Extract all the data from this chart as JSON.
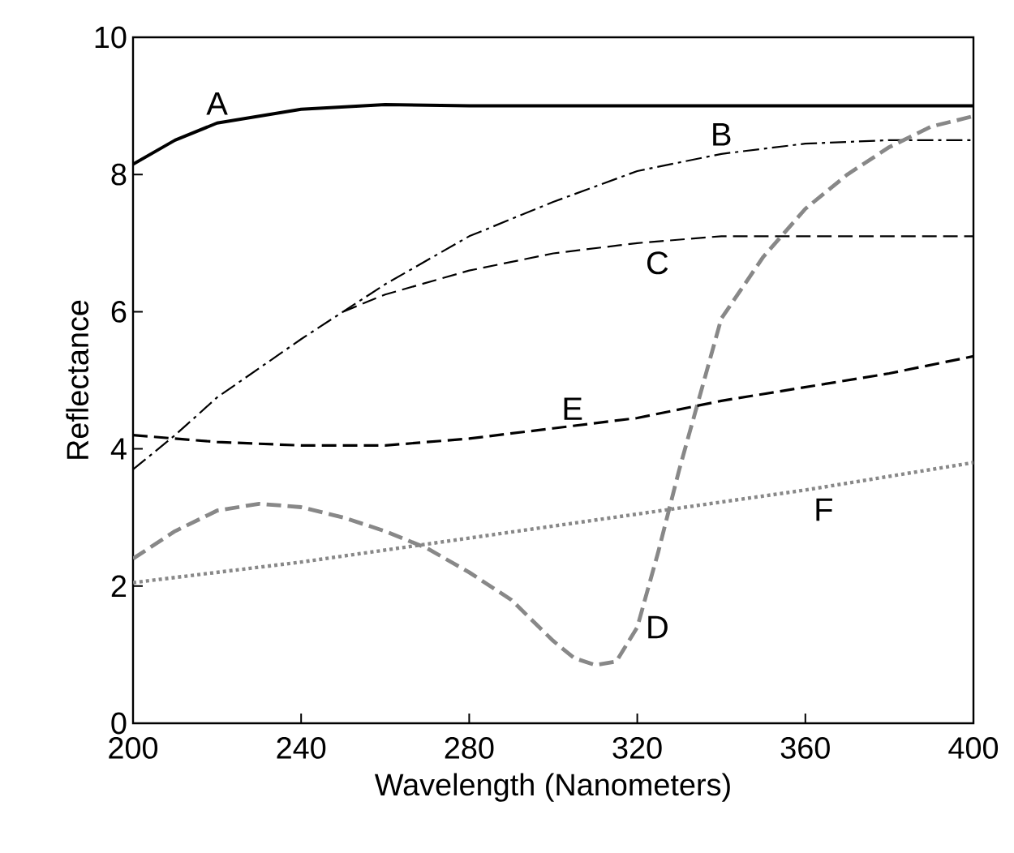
{
  "chart_data": {
    "type": "line",
    "xlabel": "Wavelength (Nanometers)",
    "ylabel": "Reflectance",
    "xlim": [
      200,
      400
    ],
    "ylim": [
      0,
      10
    ],
    "xticks": [
      200,
      240,
      280,
      320,
      360,
      400
    ],
    "yticks": [
      0,
      2,
      4,
      6,
      8,
      10
    ],
    "marker": "none",
    "series": [
      {
        "name": "A",
        "color": "#000000",
        "line_style": "solid",
        "x": [
          200,
          210,
          220,
          240,
          260,
          280,
          300,
          400
        ],
        "values": [
          8.15,
          8.5,
          8.75,
          8.95,
          9.02,
          9.0,
          9.0,
          9.0
        ]
      },
      {
        "name": "B",
        "color": "#000000",
        "line_style": "dashdot",
        "x": [
          200,
          210,
          220,
          240,
          250,
          260,
          280,
          300,
          320,
          340,
          360,
          380,
          400
        ],
        "values": [
          3.7,
          4.2,
          4.75,
          5.6,
          6.0,
          6.4,
          7.1,
          7.6,
          8.05,
          8.3,
          8.45,
          8.5,
          8.5
        ]
      },
      {
        "name": "C",
        "color": "#000000",
        "line_style": "dashed",
        "x": [
          250,
          260,
          280,
          300,
          320,
          340,
          360,
          400
        ],
        "values": [
          6.0,
          6.25,
          6.6,
          6.85,
          7.0,
          7.1,
          7.1,
          7.1
        ]
      },
      {
        "name": "D",
        "color": "#888888",
        "line_style": "dashed",
        "x": [
          200,
          210,
          220,
          230,
          240,
          250,
          260,
          270,
          280,
          290,
          300,
          305,
          310,
          315,
          320,
          325,
          330,
          335,
          340,
          350,
          360,
          370,
          380,
          390,
          400
        ],
        "values": [
          2.4,
          2.8,
          3.1,
          3.2,
          3.15,
          3.0,
          2.8,
          2.55,
          2.2,
          1.8,
          1.2,
          0.95,
          0.85,
          0.9,
          1.4,
          2.5,
          3.7,
          4.8,
          5.9,
          6.8,
          7.5,
          8.0,
          8.4,
          8.7,
          8.85
        ]
      },
      {
        "name": "E",
        "color": "#000000",
        "line_style": "dashed",
        "x": [
          200,
          220,
          240,
          260,
          280,
          300,
          320,
          340,
          360,
          380,
          400
        ],
        "values": [
          4.2,
          4.1,
          4.05,
          4.05,
          4.15,
          4.3,
          4.45,
          4.7,
          4.9,
          5.1,
          5.35
        ]
      },
      {
        "name": "F",
        "color": "#888888",
        "line_style": "dotted",
        "x": [
          200,
          240,
          280,
          320,
          360,
          400
        ],
        "values": [
          2.05,
          2.35,
          2.7,
          3.05,
          3.4,
          3.8
        ]
      }
    ]
  }
}
